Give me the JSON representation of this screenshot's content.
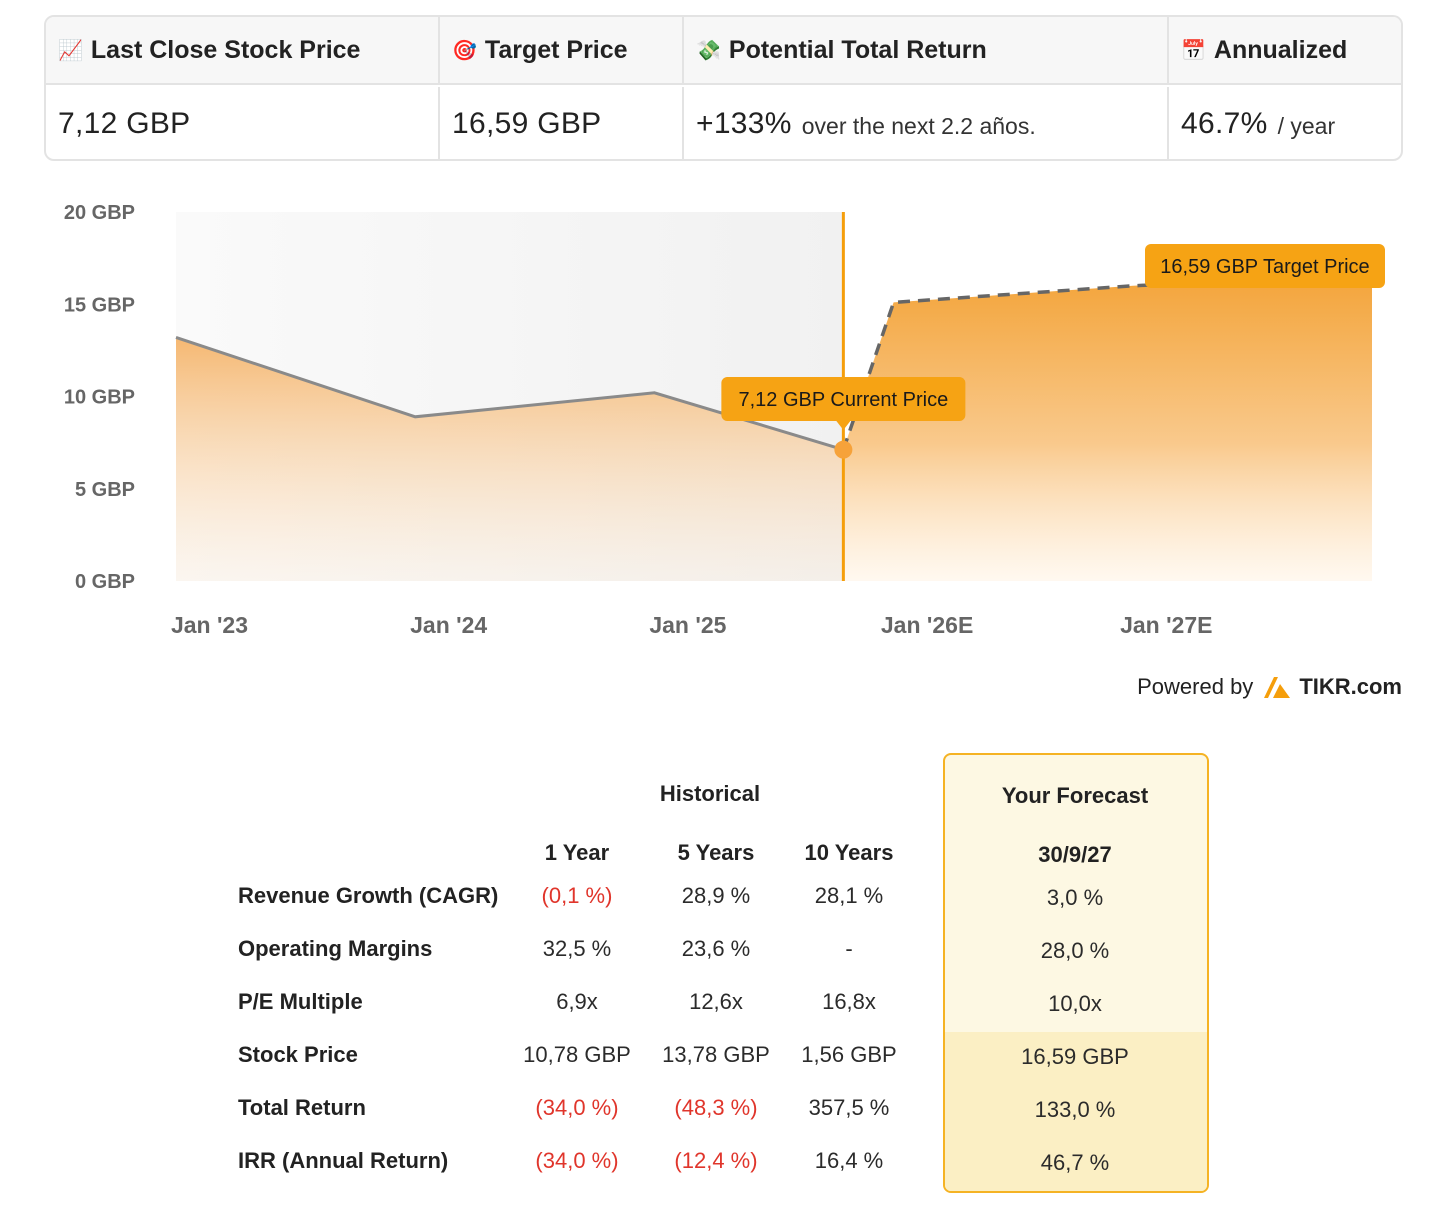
{
  "summary": {
    "headers": [
      {
        "icon": "📈",
        "label": "Last Close Stock Price"
      },
      {
        "icon": "🎯",
        "label": "Target Price"
      },
      {
        "icon": "💸",
        "label": "Potential Total Return"
      },
      {
        "icon": "📅",
        "label": "Annualized"
      }
    ],
    "last_close": "7,12 GBP",
    "target": "16,59 GBP",
    "return_value": "+133%",
    "return_note": "over the next 2.2 años.",
    "annualized_value": "46.7%",
    "annualized_note": "/ year"
  },
  "chart_data": {
    "type": "area",
    "y_unit": "GBP",
    "ylim": [
      0,
      20
    ],
    "y_ticks": [
      {
        "value": 0,
        "label": "0 GBP"
      },
      {
        "value": 5,
        "label": "5 GBP"
      },
      {
        "value": 10,
        "label": "10 GBP"
      },
      {
        "value": 15,
        "label": "15 GBP"
      },
      {
        "value": 20,
        "label": "20 GBP"
      }
    ],
    "x_range": [
      2022.86,
      2027.86
    ],
    "x_ticks": [
      {
        "value": 2023.0,
        "label": "Jan '23"
      },
      {
        "value": 2024.0,
        "label": "Jan '24"
      },
      {
        "value": 2025.0,
        "label": "Jan '25"
      },
      {
        "value": 2026.0,
        "label": "Jan '26E"
      },
      {
        "value": 2027.0,
        "label": "Jan '27E"
      }
    ],
    "series": [
      {
        "name": "Historical price",
        "style": "solid",
        "x": [
          2022.86,
          2023.86,
          2024.86,
          2025.65
        ],
        "y": [
          13.2,
          8.9,
          10.2,
          7.12
        ]
      },
      {
        "name": "Forecast price",
        "style": "dashed",
        "x": [
          2025.65,
          2025.86,
          2026.86,
          2027.86
        ],
        "y": [
          7.12,
          15.1,
          16.0,
          16.59
        ]
      }
    ],
    "current_x": 2025.65,
    "annotations": [
      {
        "x": 2025.65,
        "y": 7.12,
        "text": "7,12 GBP Current Price"
      },
      {
        "x": 2027.86,
        "y": 16.59,
        "text": "16,59 GBP Target Price"
      }
    ]
  },
  "powered": {
    "prefix": "Powered by",
    "brand": "TIKR.com"
  },
  "forecast_table": {
    "historical_label": "Historical",
    "forecast_label": "Your Forecast",
    "columns": [
      "1 Year",
      "5 Years",
      "10 Years",
      "30/9/27"
    ],
    "rows": [
      {
        "label": "Revenue Growth (CAGR)",
        "cells": [
          {
            "v": "(0,1 %)",
            "neg": true
          },
          {
            "v": "28,9 %",
            "neg": false
          },
          {
            "v": "28,1 %",
            "neg": false
          },
          {
            "v": "3,0 %",
            "neg": false
          }
        ]
      },
      {
        "label": "Operating Margins",
        "cells": [
          {
            "v": "32,5 %",
            "neg": false
          },
          {
            "v": "23,6 %",
            "neg": false
          },
          {
            "v": "-",
            "neg": false
          },
          {
            "v": "28,0 %",
            "neg": false
          }
        ]
      },
      {
        "label": "P/E Multiple",
        "cells": [
          {
            "v": "6,9x",
            "neg": false
          },
          {
            "v": "12,6x",
            "neg": false
          },
          {
            "v": "16,8x",
            "neg": false
          },
          {
            "v": "10,0x",
            "neg": false
          }
        ]
      },
      {
        "label": "Stock Price",
        "cells": [
          {
            "v": "10,78 GBP",
            "neg": false
          },
          {
            "v": "13,78 GBP",
            "neg": false
          },
          {
            "v": "1,56 GBP",
            "neg": false
          },
          {
            "v": "16,59 GBP",
            "neg": false
          }
        ]
      },
      {
        "label": "Total Return",
        "cells": [
          {
            "v": "(34,0 %)",
            "neg": true
          },
          {
            "v": "(48,3 %)",
            "neg": true
          },
          {
            "v": "357,5 %",
            "neg": false
          },
          {
            "v": "133,0 %",
            "neg": false
          }
        ]
      },
      {
        "label": "IRR (Annual Return)",
        "cells": [
          {
            "v": "(34,0 %)",
            "neg": true
          },
          {
            "v": "(12,4 %)",
            "neg": true
          },
          {
            "v": "16,4 %",
            "neg": false
          },
          {
            "v": "46,7 %",
            "neg": false
          }
        ]
      }
    ]
  }
}
